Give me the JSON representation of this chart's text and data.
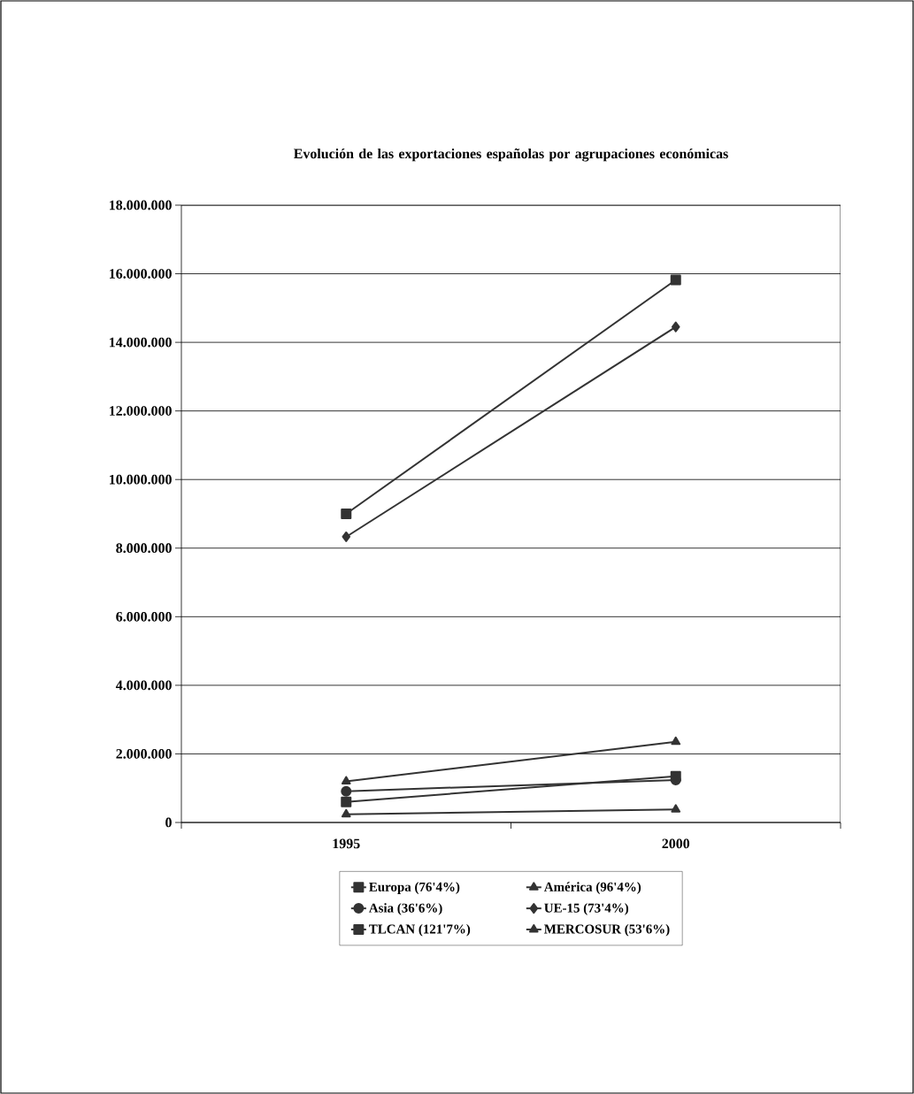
{
  "chart_data": {
    "type": "line",
    "title": "Evolución de las exportaciones españolas por agrupaciones económicas",
    "categories": [
      "1995",
      "2000"
    ],
    "series": [
      {
        "name": "Europa (76'4%)",
        "color": "#333333",
        "marker": "square",
        "values": [
          9000000,
          15820000
        ]
      },
      {
        "name": "América (96'4%)",
        "color": "#333333",
        "marker": "triangle",
        "values": [
          1200000,
          2350000
        ]
      },
      {
        "name": "Asia (36'6%)",
        "color": "#333333",
        "marker": "circle",
        "values": [
          910000,
          1240000
        ]
      },
      {
        "name": "UE-15 (73'4%)",
        "color": "#333333",
        "marker": "diamond",
        "values": [
          8330000,
          14450000
        ]
      },
      {
        "name": "TLCAN (121'7%)",
        "color": "#333333",
        "marker": "square",
        "values": [
          600000,
          1350000
        ]
      },
      {
        "name": "MERCOSUR (53'6%)",
        "color": "#333333",
        "marker": "triangle",
        "values": [
          240000,
          380000
        ]
      }
    ],
    "ylim": [
      0,
      18000000
    ],
    "yticks": [
      {
        "value": 0,
        "label": "0"
      },
      {
        "value": 2000000,
        "label": "2.000.000"
      },
      {
        "value": 4000000,
        "label": "4.000.000"
      },
      {
        "value": 6000000,
        "label": "6.000.000"
      },
      {
        "value": 8000000,
        "label": "8.000.000"
      },
      {
        "value": 10000000,
        "label": "10.000.000"
      },
      {
        "value": 12000000,
        "label": "12.000.000"
      },
      {
        "value": 14000000,
        "label": "14.000.000"
      },
      {
        "value": 16000000,
        "label": "16.000.000"
      },
      {
        "value": 18000000,
        "label": "18.000.000"
      }
    ],
    "grid": "y",
    "legend": "bottom",
    "line_style": "solid"
  }
}
